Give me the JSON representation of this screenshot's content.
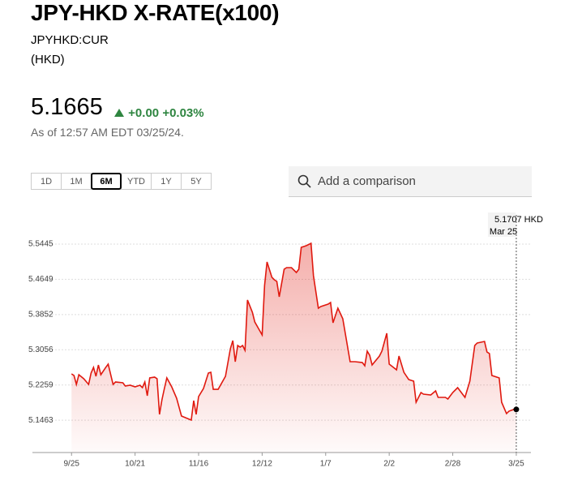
{
  "header": {
    "title": "JPY-HKD X-RATE(x100)",
    "ticker": "JPYHKD:CUR",
    "currency": "(HKD)",
    "price": "5.1665",
    "change": "+0.00",
    "change_pct": "+0.03%",
    "as_of": "As of 12:57 AM EDT 03/25/24."
  },
  "ranges": [
    "1D",
    "1M",
    "6M",
    "YTD",
    "1Y",
    "5Y"
  ],
  "selected_range": "6M",
  "search_placeholder": "Add a comparison",
  "chart_data": {
    "type": "line",
    "x": [
      0,
      1,
      2,
      3,
      5,
      7,
      8,
      9,
      10,
      11,
      12,
      14,
      15,
      17,
      18,
      21,
      22,
      24,
      26,
      28,
      29,
      30,
      31,
      32,
      34,
      35,
      36,
      37,
      38,
      39,
      41,
      43,
      45,
      49,
      50,
      51,
      52,
      54,
      56,
      57,
      58,
      60,
      63,
      65,
      66,
      67,
      68,
      69,
      70,
      71,
      72,
      74,
      75,
      78,
      79,
      80,
      82,
      83,
      84,
      85,
      87,
      88,
      90,
      92,
      93,
      94,
      96,
      98,
      99,
      101,
      102,
      105,
      106,
      107,
      109,
      111,
      114,
      116,
      119,
      120,
      121,
      122,
      123,
      126,
      127,
      129,
      130,
      133,
      134,
      136,
      138,
      140,
      141,
      143,
      144,
      147,
      149,
      150,
      153,
      154,
      156,
      158,
      160,
      161,
      163,
      165,
      166,
      169,
      170,
      171,
      172,
      175,
      176,
      178,
      179,
      181,
      182
    ],
    "series": [
      {
        "name": "JPYHKD",
        "color": "#e0190f",
        "values": [
          5.2511,
          5.2474,
          5.2272,
          5.2492,
          5.2401,
          5.2272,
          5.2529,
          5.2657,
          5.2456,
          5.2712,
          5.2492,
          5.2657,
          5.2731,
          5.2272,
          5.2327,
          5.2309,
          5.2235,
          5.2254,
          5.2217,
          5.2254,
          5.2199,
          5.2327,
          5.2015,
          5.2419,
          5.2437,
          5.2401,
          5.1594,
          5.1924,
          5.2181,
          5.2419,
          5.2217,
          5.196,
          5.1557,
          5.1465,
          5.1905,
          5.1594,
          5.1997,
          5.2181,
          5.2529,
          5.2547,
          5.2162,
          5.2162,
          5.2456,
          5.3079,
          5.3263,
          5.2786,
          5.3152,
          5.3116,
          5.3152,
          5.3043,
          5.418,
          5.3904,
          5.3684,
          5.3391,
          5.451,
          5.5042,
          5.4693,
          5.4638,
          5.4601,
          5.4253,
          5.4876,
          5.4913,
          5.4913,
          5.4803,
          5.4876,
          5.5372,
          5.5408,
          5.5463,
          5.473,
          5.3996,
          5.4033,
          5.4088,
          5.4125,
          5.3666,
          5.3996,
          5.3758,
          5.2786,
          5.2786,
          5.2767,
          5.2694,
          5.3024,
          5.2932,
          5.2712,
          5.2914,
          5.3024,
          5.3428,
          5.2731,
          5.2602,
          5.2914,
          5.2547,
          5.2382,
          5.2346,
          5.1869,
          5.2089,
          5.2052,
          5.2034,
          5.2126,
          5.1979,
          5.1979,
          5.1942,
          5.2089,
          5.2199,
          5.2052,
          5.1979,
          5.2346,
          5.3152,
          5.3208,
          5.3244,
          5.3006,
          5.2969,
          5.2474,
          5.2419,
          5.1869,
          5.1612,
          5.1667,
          5.1707,
          5.1707
        ]
      }
    ],
    "xlim": [
      -16,
      188
    ],
    "xticks": [
      {
        "value": 0,
        "label": "9/25"
      },
      {
        "value": 26,
        "label": "10/21"
      },
      {
        "value": 52,
        "label": "11/16"
      },
      {
        "value": 78,
        "label": "12/12"
      },
      {
        "value": 104,
        "label": "1/7"
      },
      {
        "value": 130,
        "label": "2/2"
      },
      {
        "value": 156,
        "label": "2/28"
      },
      {
        "value": 182,
        "label": "3/25"
      }
    ],
    "ylim": [
      5.0732,
      5.6105
    ],
    "yticks": [
      5.5445,
      5.4649,
      5.3852,
      5.3056,
      5.2259,
      5.1463
    ],
    "grid": true,
    "tooltip_value": "5.1707 HKD",
    "tooltip_date": "Mar 25"
  }
}
